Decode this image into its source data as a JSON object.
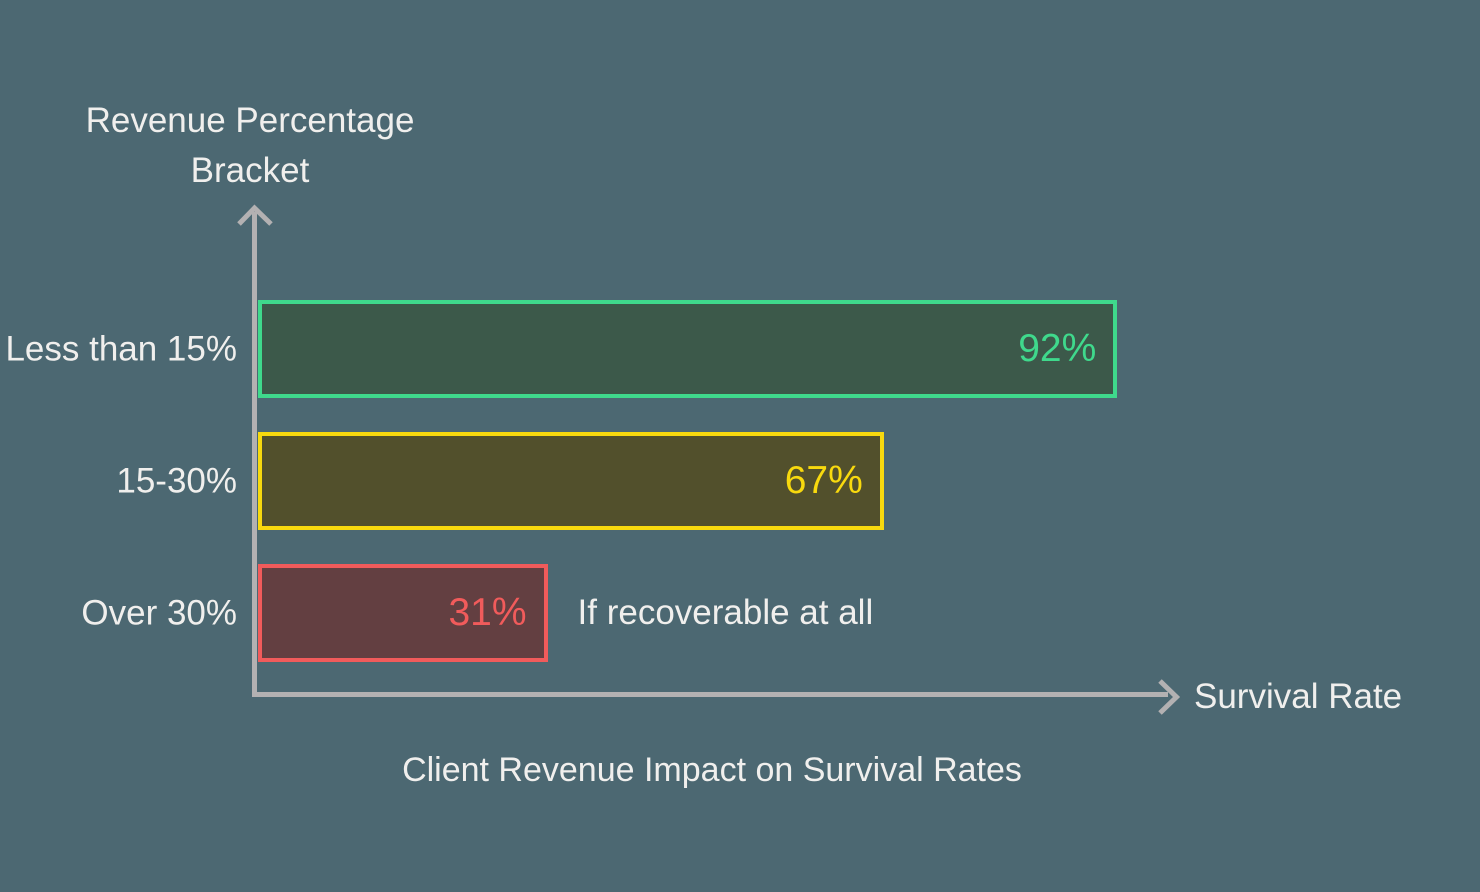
{
  "colors": {
    "background": "#4c6872",
    "text": "#f0efed",
    "axis": "#b3b1b2"
  },
  "chart_data": {
    "type": "bar",
    "orientation": "horizontal",
    "title": "Client Revenue Impact on Survival Rates",
    "xlabel": "Survival Rate",
    "ylabel": "Revenue Percentage Bracket",
    "xlim": [
      0,
      100
    ],
    "grid": false,
    "legend": false,
    "categories": [
      "Less than 15%",
      "15-30%",
      "Over 30%"
    ],
    "values": [
      92,
      67,
      31
    ],
    "bars": [
      {
        "category": "Less than 15%",
        "value": 92,
        "value_label": "92%",
        "fill_color": "#3c594a",
        "accent_color": "#3fd98c",
        "annotation": null
      },
      {
        "category": "15-30%",
        "value": 67,
        "value_label": "67%",
        "fill_color": "#52502c",
        "accent_color": "#f8d90e",
        "annotation": null
      },
      {
        "category": "Over 30%",
        "value": 31,
        "value_label": "31%",
        "fill_color": "#633f41",
        "accent_color": "#f15b5b",
        "annotation": "If recoverable at all"
      }
    ]
  }
}
